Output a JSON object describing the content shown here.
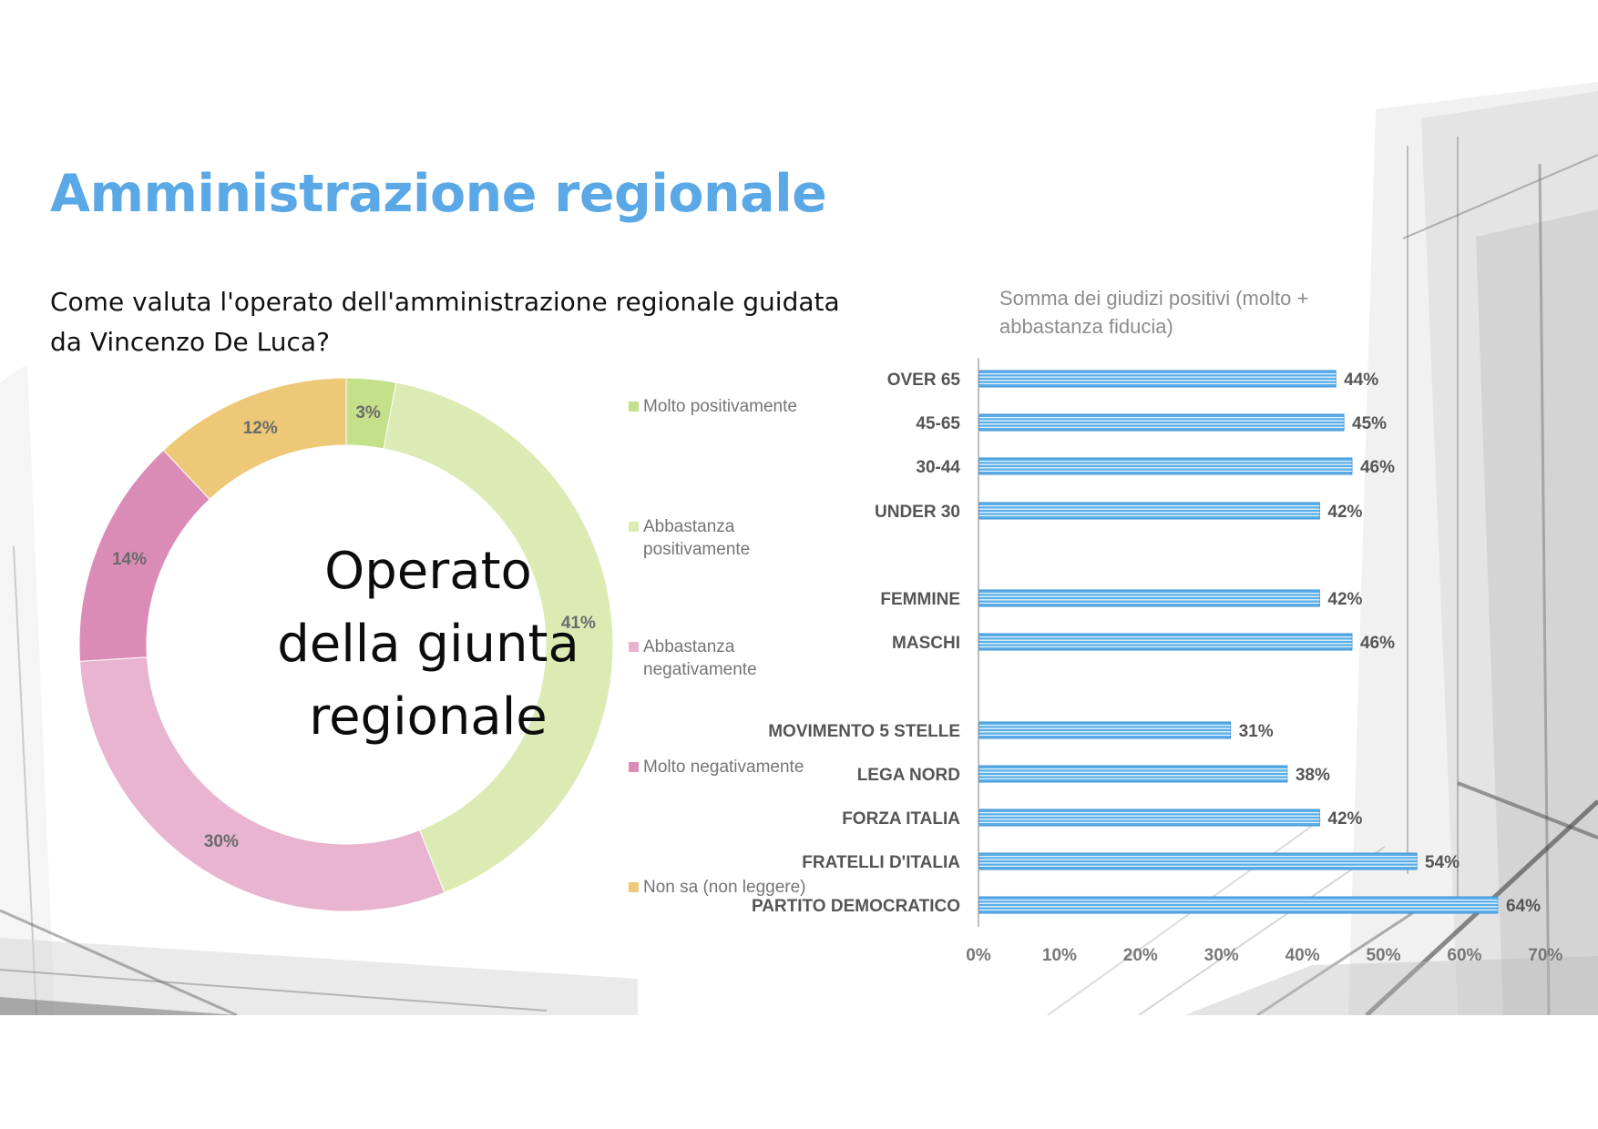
{
  "slide": {
    "title": "Amministrazione regionale",
    "question": "Come valuta l'operato dell'amministrazione regionale guidata da Vincenzo De Luca?"
  },
  "donut": {
    "center_lines": [
      "Operato",
      "della giunta",
      "regionale"
    ]
  },
  "bar": {
    "title": "Somma dei giudizi positivi (molto + abbastanza fiducia)"
  },
  "chart_data": [
    {
      "type": "pie",
      "style": "donut",
      "categories": [
        "Molto positivamente",
        "Abbastanza positivamente",
        "Abbastanza negativamente",
        "Molto negativamente",
        "Non sa (non leggere)"
      ],
      "values": [
        3,
        41,
        30,
        14,
        12
      ],
      "data_labels": [
        "3%",
        "41%",
        "30%",
        "14%",
        "12%"
      ],
      "colors": [
        "#c5e08a",
        "#dceab4",
        "#e8b4d0",
        "#db8cb6",
        "#ecc877"
      ],
      "legend_position": "right"
    },
    {
      "type": "bar",
      "orientation": "horizontal",
      "title": "Somma dei giudizi positivi (molto + abbastanza fiducia)",
      "categories": [
        "OVER 65",
        "45-65",
        "30-44",
        "UNDER 30",
        "",
        "FEMMINE",
        "MASCHI",
        "",
        "MOVIMENTO 5 STELLE",
        "LEGA NORD",
        "FORZA ITALIA",
        "FRATELLI D'ITALIA",
        "PARTITO DEMOCRATICO"
      ],
      "values": [
        44,
        45,
        46,
        42,
        null,
        42,
        46,
        null,
        31,
        38,
        42,
        54,
        64
      ],
      "data_labels": [
        "44%",
        "45%",
        "46%",
        "42%",
        "",
        "42%",
        "46%",
        "",
        "31%",
        "38%",
        "42%",
        "54%",
        "64%"
      ],
      "xlim": [
        0,
        70
      ],
      "x_ticks": [
        "0%",
        "10%",
        "20%",
        "30%",
        "40%",
        "50%",
        "60%",
        "70%"
      ],
      "bar_color": "#5aaee8",
      "grid": false,
      "legend": "none"
    }
  ]
}
